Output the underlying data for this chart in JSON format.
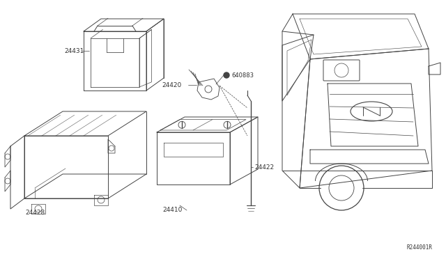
{
  "background_color": "#ffffff",
  "line_color": "#444444",
  "label_color": "#333333",
  "fig_width": 6.4,
  "fig_height": 3.72,
  "dpi": 100,
  "diagram_id": "R244001R"
}
